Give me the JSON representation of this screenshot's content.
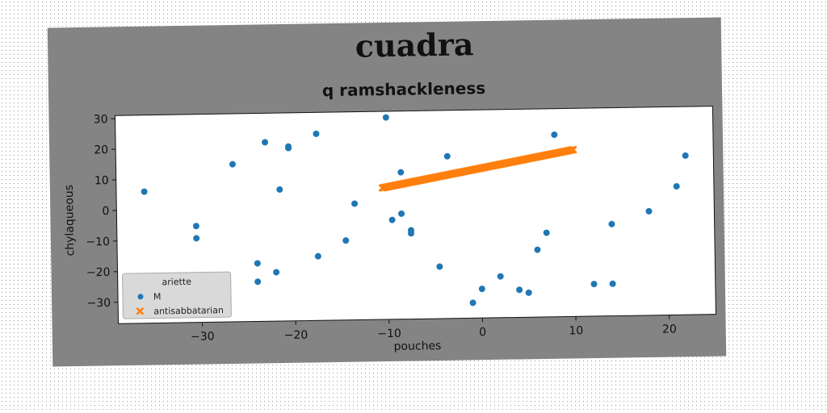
{
  "chart_data": {
    "type": "scatter",
    "title": "cuadra",
    "subtitle": "q ramshackleness",
    "xlabel": "pouches",
    "ylabel": "chylaqueous",
    "xlim": [
      -39,
      25
    ],
    "ylim": [
      -37,
      31
    ],
    "xticks": [
      -30,
      -20,
      -10,
      0,
      10,
      20
    ],
    "yticks": [
      -30,
      -20,
      -10,
      0,
      10,
      20,
      30
    ],
    "xtick_labels": [
      "−30",
      "−20",
      "−10",
      "0",
      "10",
      "20"
    ],
    "ytick_labels": [
      "−30",
      "−20",
      "−10",
      "0",
      "10",
      "20",
      "30"
    ],
    "grid": false,
    "legend": {
      "title": "ariette",
      "placement": "lower-left"
    },
    "colors": {
      "series_m": "#1f77b4",
      "series_anti": "#ff7f0e",
      "figure_bg": "#848484",
      "axes_bg": "#ffffff"
    },
    "series": [
      {
        "name": "M",
        "marker": "circle",
        "color": "#1f77b4",
        "points": [
          [
            -36,
            6
          ],
          [
            -30.5,
            -5.5
          ],
          [
            -30.5,
            -9.5
          ],
          [
            -26.5,
            14.5
          ],
          [
            -24,
            -18
          ],
          [
            -24,
            -24
          ],
          [
            -23,
            21.5
          ],
          [
            -22,
            -21
          ],
          [
            -21.5,
            6
          ],
          [
            -20.5,
            19.5
          ],
          [
            -20.5,
            20
          ],
          [
            -17.5,
            24
          ],
          [
            -17.5,
            -16
          ],
          [
            -14.5,
            -11
          ],
          [
            -13.5,
            1
          ],
          [
            -10,
            29
          ],
          [
            -9.5,
            -4.5
          ],
          [
            -8.5,
            11
          ],
          [
            -8.5,
            -2.5
          ],
          [
            -7.5,
            -8
          ],
          [
            -7.5,
            -9
          ],
          [
            -4.5,
            -20
          ],
          [
            -3.5,
            16
          ],
          [
            -1,
            -32
          ],
          [
            0,
            -27.5
          ],
          [
            2,
            -23.5
          ],
          [
            4,
            -28
          ],
          [
            5,
            -29
          ],
          [
            6,
            -15
          ],
          [
            7,
            -9.5
          ],
          [
            8,
            22.5
          ],
          [
            12,
            -26.5
          ],
          [
            14,
            -7
          ],
          [
            14,
            -26.5
          ],
          [
            18,
            -3
          ],
          [
            21,
            5
          ],
          [
            22,
            15
          ]
        ]
      },
      {
        "name": "antisabbatarian",
        "marker": "x",
        "color": "#ff7f0e",
        "line_from": [
          -10.5,
          6
        ],
        "line_to": [
          10,
          17.5
        ]
      }
    ]
  }
}
